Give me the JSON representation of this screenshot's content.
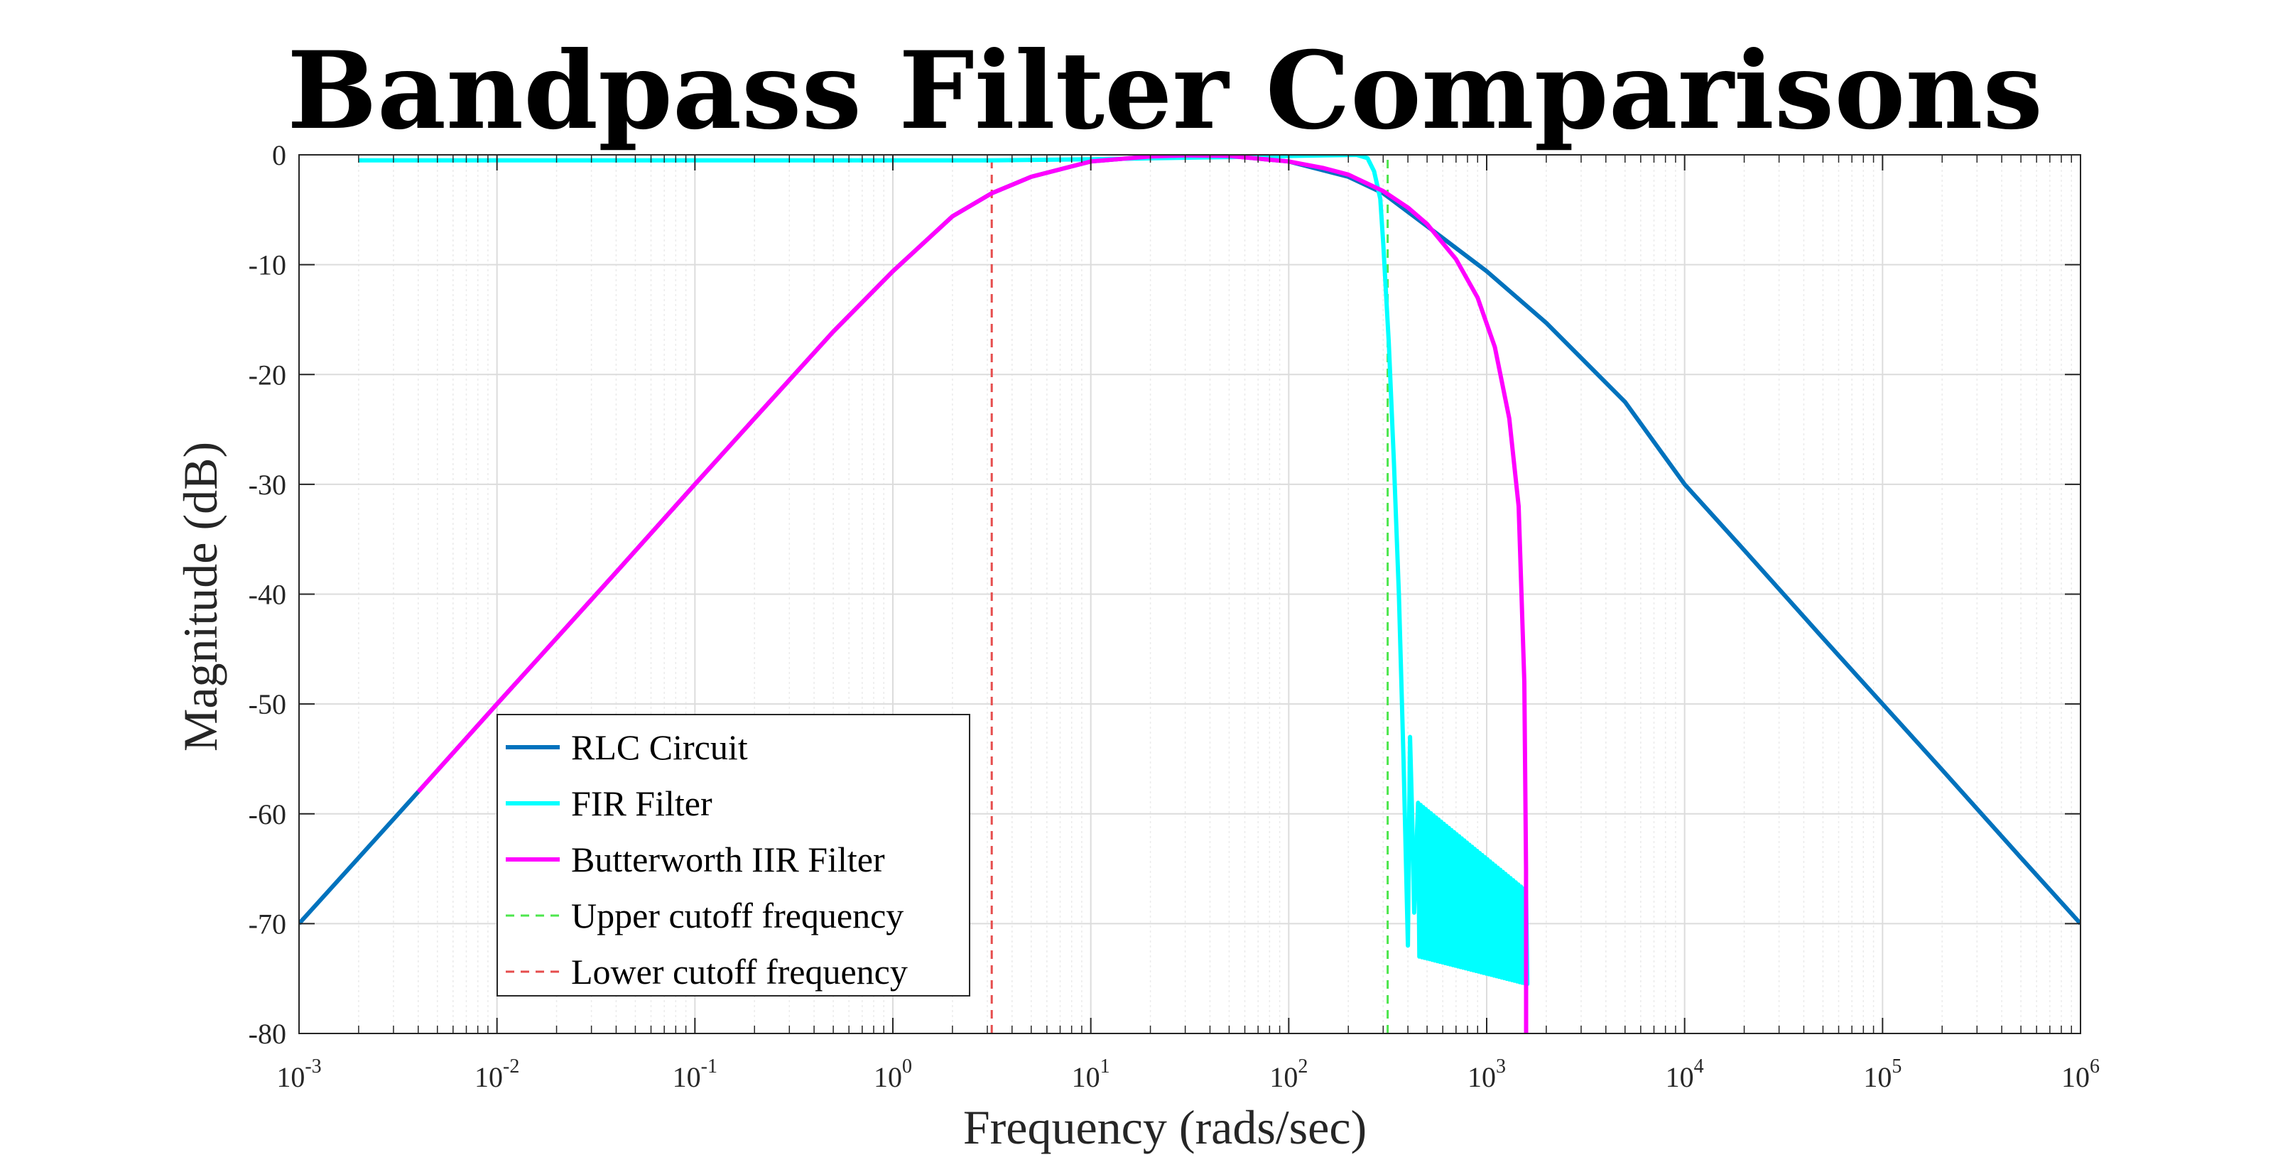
{
  "chart_data": {
    "type": "line",
    "title": "Bandpass Filter Comparisons",
    "xlabel": "Frequency (rads/sec)",
    "ylabel": "Magnitude (dB)",
    "xscale": "log",
    "xlim": [
      0.001,
      1000000
    ],
    "ylim": [
      -80,
      0
    ],
    "grid": true,
    "legend_position": "bottom-left",
    "x_ticks": [
      {
        "value": 0.001,
        "base": "10",
        "exp": "-3"
      },
      {
        "value": 0.01,
        "base": "10",
        "exp": "-2"
      },
      {
        "value": 0.1,
        "base": "10",
        "exp": "-1"
      },
      {
        "value": 1,
        "base": "10",
        "exp": "0"
      },
      {
        "value": 10,
        "base": "10",
        "exp": "1"
      },
      {
        "value": 100,
        "base": "10",
        "exp": "2"
      },
      {
        "value": 1000,
        "base": "10",
        "exp": "3"
      },
      {
        "value": 10000,
        "base": "10",
        "exp": "4"
      },
      {
        "value": 100000,
        "base": "10",
        "exp": "5"
      },
      {
        "value": 1000000,
        "base": "10",
        "exp": "6"
      }
    ],
    "y_ticks": [
      {
        "value": 0,
        "label": "0"
      },
      {
        "value": -10,
        "label": "-10"
      },
      {
        "value": -20,
        "label": "-20"
      },
      {
        "value": -30,
        "label": "-30"
      },
      {
        "value": -40,
        "label": "-40"
      },
      {
        "value": -50,
        "label": "-50"
      },
      {
        "value": -60,
        "label": "-60"
      },
      {
        "value": -70,
        "label": "-70"
      },
      {
        "value": -80,
        "label": "-80"
      }
    ],
    "series": [
      {
        "name": "RLC Circuit",
        "color": "#0072BD",
        "style": "solid",
        "x": [
          0.001,
          0.002,
          0.004,
          0.01,
          0.02,
          0.04,
          0.1,
          0.2,
          0.5,
          1,
          2,
          3.16,
          5,
          10,
          20,
          30,
          50,
          100,
          200,
          300,
          500,
          1000,
          2000,
          5000,
          10000,
          20000,
          50000,
          100000,
          200000,
          500000,
          1000000
        ],
        "y": [
          -70,
          -64,
          -58,
          -50,
          -44,
          -38,
          -30,
          -24,
          -16.1,
          -10.6,
          -5.6,
          -3.5,
          -2.0,
          -0.6,
          -0.15,
          -0.05,
          -0.1,
          -0.6,
          -2.0,
          -3.5,
          -6.5,
          -10.6,
          -15.3,
          -22.5,
          -30,
          -36,
          -44,
          -50,
          -56,
          -64,
          -70
        ]
      },
      {
        "name": "FIR Filter",
        "color": "#00FFFF",
        "style": "solid",
        "x": [
          0.002,
          0.01,
          0.1,
          1,
          3.16,
          10,
          50,
          150,
          220,
          250,
          270,
          290,
          300,
          320,
          340,
          360,
          380,
          400,
          410,
          420,
          430,
          440,
          450,
          500,
          600,
          800,
          1000,
          1300,
          1580
        ],
        "y": [
          -0.5,
          -0.5,
          -0.5,
          -0.5,
          -0.5,
          -0.4,
          -0.2,
          -0.05,
          0,
          -0.3,
          -1.5,
          -4,
          -8,
          -17,
          -28,
          -40,
          -55,
          -72,
          -53,
          -60,
          -69,
          -64,
          -67,
          -59,
          -60,
          -63,
          -65,
          -67,
          -67
        ]
      },
      {
        "name": "Butterworth IIR Filter",
        "color": "#FF00FF",
        "style": "solid",
        "x": [
          0.004,
          0.01,
          0.02,
          0.04,
          0.1,
          0.2,
          0.5,
          1,
          2,
          3.16,
          5,
          10,
          20,
          30,
          50,
          100,
          150,
          200,
          300,
          400,
          500,
          700,
          900,
          1100,
          1300,
          1450,
          1550,
          1580,
          1582
        ],
        "y": [
          -58,
          -50,
          -44,
          -38,
          -30,
          -24,
          -16.1,
          -10.6,
          -5.6,
          -3.5,
          -2.0,
          -0.6,
          -0.15,
          -0.05,
          -0.1,
          -0.6,
          -1.2,
          -1.8,
          -3.3,
          -4.8,
          -6.3,
          -9.5,
          -13,
          -17.5,
          -24,
          -32,
          -48,
          -65,
          -80
        ]
      },
      {
        "name": "Upper cutoff frequency",
        "color": "#4DE64D",
        "style": "dashed",
        "x": [
          316,
          316
        ],
        "y": [
          -80,
          0
        ]
      },
      {
        "name": "Lower cutoff frequency",
        "color": "#E64D4D",
        "style": "dashed",
        "x": [
          3.16,
          3.16
        ],
        "y": [
          -80,
          0
        ]
      }
    ],
    "fir_ripple": {
      "x_start": 450,
      "x_end": 1580,
      "count": 42,
      "upper_start": -59,
      "upper_end": -67,
      "lower_start": -73,
      "lower_end": -75.5
    }
  }
}
